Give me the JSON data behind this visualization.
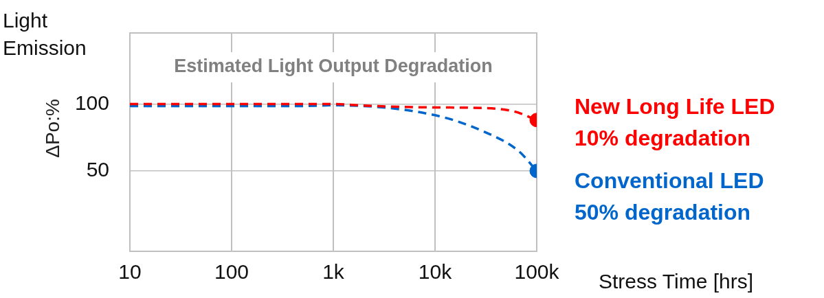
{
  "chart_data": {
    "type": "line",
    "title": "Estimated Light Output Degradation",
    "xlabel": "Stress Time [hrs]",
    "ylabel": "Light Emission",
    "log": "x",
    "grid": true,
    "line_style": "dashed",
    "legend": false,
    "xlim": [
      10,
      100000
    ],
    "xticks": [
      10,
      100,
      {
        "value": 1000,
        "label": "1k"
      },
      {
        "value": 10000,
        "label": "10k"
      },
      {
        "value": 100000,
        "label": "100k"
      }
    ],
    "ylim": [
      -10,
      153
    ],
    "yticks": [
      50,
      100
    ],
    "x": [
      10,
      1000,
      2000,
      10000,
      30000,
      60000,
      100000
    ],
    "series": [
      {
        "name": "New Long Life LED",
        "color": "#ff0000",
        "values": [
          100,
          100,
          98.8,
          97.4,
          97,
          94.4,
          88
        ]
      },
      {
        "name": "Conventional LED",
        "color": "#0066cc",
        "x": [
          10,
          460,
          1000,
          10000,
          31000,
          66000,
          100000
        ],
        "values": [
          98.4,
          98.4,
          99,
          91.6,
          79,
          65,
          50
        ]
      },
      {
        "type": "scatter",
        "marker": "circle",
        "color": "#ff0000",
        "x": [
          100000
        ],
        "values": [
          88
        ]
      },
      {
        "type": "scatter",
        "marker": "circle",
        "color": "#0066cc",
        "x": [
          100000
        ],
        "values": [
          50
        ]
      }
    ],
    "annotations": [
      "ΔPo:%",
      {
        "text": "10% degradation",
        "x": 100000,
        "y": 88
      },
      {
        "text": "50% degradation",
        "x": 100000,
        "y": 50
      }
    ]
  }
}
